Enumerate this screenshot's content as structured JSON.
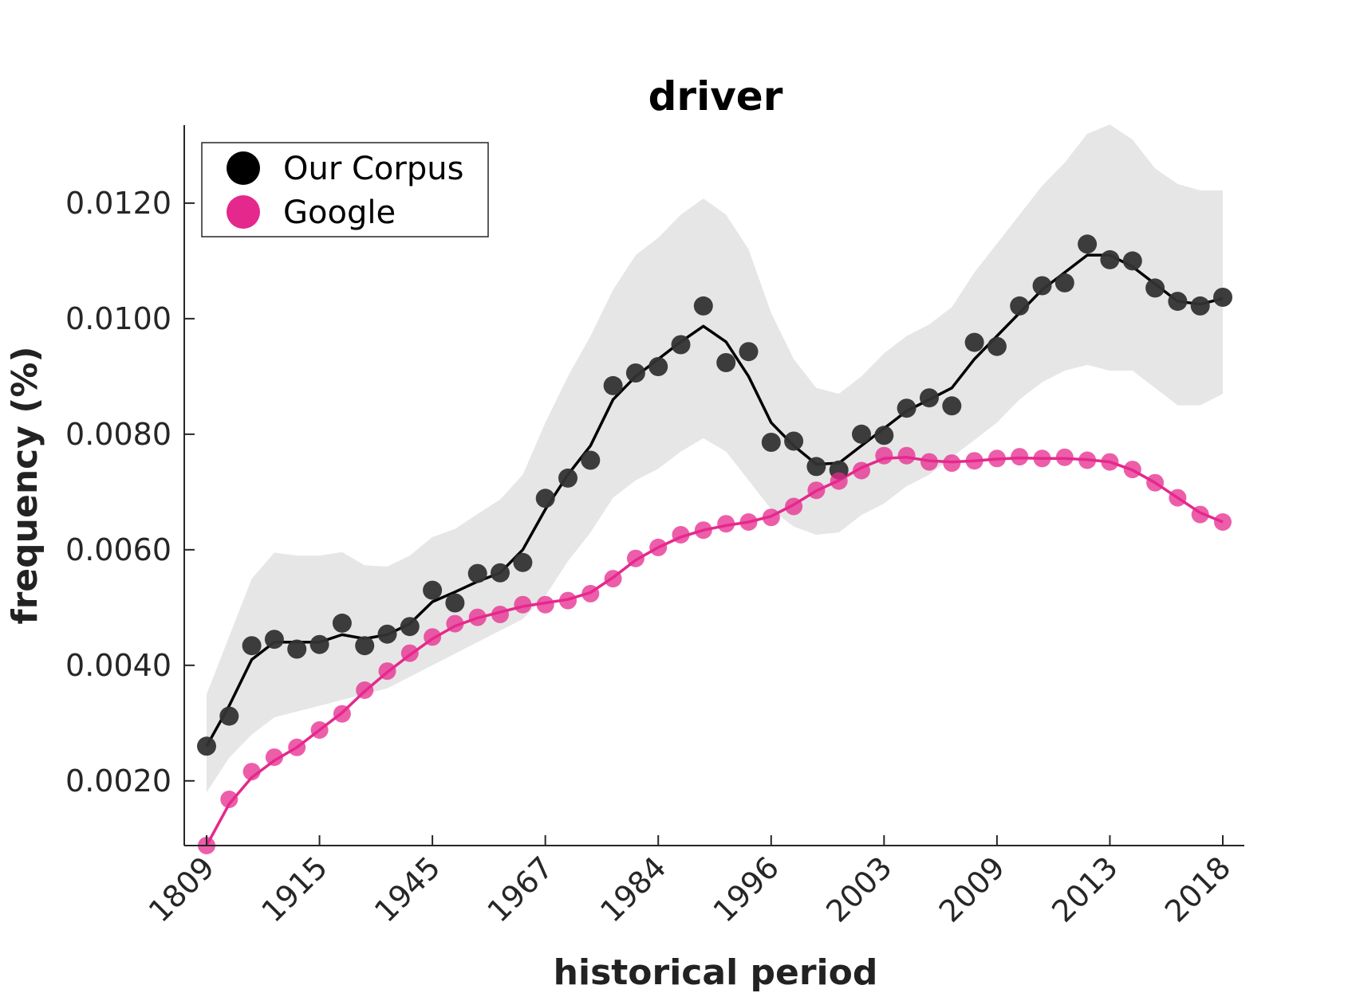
{
  "chart_data": {
    "type": "line",
    "title": "driver",
    "xlabel": "historical period",
    "ylabel": "frequency (%)",
    "x_tick_labels": [
      "1809",
      "1915",
      "1945",
      "1967",
      "1984",
      "1996",
      "2003",
      "2009",
      "2013",
      "2018"
    ],
    "y_tick_labels": [
      "0.0020",
      "0.0040",
      "0.0060",
      "0.0080",
      "0.0100",
      "0.0120"
    ],
    "y_ticks": [
      0.002,
      0.004,
      0.006,
      0.008,
      0.01,
      0.012
    ],
    "ylim": [
      0.00088,
      0.01335
    ],
    "grid": false,
    "legend_position": "top-left",
    "colors": {
      "corpus": "#333333",
      "google": "#e5288c",
      "band": "#e6e6e6"
    },
    "series": [
      {
        "name": "Our Corpus",
        "color": "#000000",
        "points": [
          0.0026,
          0.00312,
          0.00434,
          0.00445,
          0.00428,
          0.00436,
          0.00473,
          0.00434,
          0.00454,
          0.00467,
          0.0053,
          0.00508,
          0.00559,
          0.0056,
          0.00578,
          0.00689,
          0.00724,
          0.00755,
          0.00884,
          0.00906,
          0.00917,
          0.00955,
          0.01022,
          0.00924,
          0.00943,
          0.00786,
          0.00788,
          0.00744,
          0.00738,
          0.008,
          0.00798,
          0.00845,
          0.00863,
          0.00849,
          0.00959,
          0.00952,
          0.01022,
          0.01057,
          0.01062,
          0.01129,
          0.01102,
          0.011,
          0.01053,
          0.0103,
          0.01022,
          0.01037
        ],
        "trend": [
          0.0026,
          0.0033,
          0.0041,
          0.0044,
          0.0044,
          0.0044,
          0.00453,
          0.00446,
          0.00453,
          0.00472,
          0.0051,
          0.00527,
          0.00545,
          0.0056,
          0.006,
          0.0067,
          0.0073,
          0.0078,
          0.0086,
          0.009,
          0.0093,
          0.0096,
          0.00987,
          0.0096,
          0.009,
          0.0082,
          0.0078,
          0.00748,
          0.0075,
          0.0078,
          0.0081,
          0.0084,
          0.0086,
          0.0088,
          0.0093,
          0.0097,
          0.0101,
          0.0105,
          0.0108,
          0.0111,
          0.0111,
          0.0109,
          0.0106,
          0.0103,
          0.01025,
          0.01035
        ],
        "band_upper": [
          0.0035,
          0.0045,
          0.0055,
          0.00595,
          0.0059,
          0.0059,
          0.00596,
          0.00573,
          0.00571,
          0.0059,
          0.00622,
          0.00636,
          0.00662,
          0.00687,
          0.0073,
          0.0082,
          0.009,
          0.0097,
          0.0105,
          0.0111,
          0.0114,
          0.0118,
          0.01208,
          0.0118,
          0.0112,
          0.0101,
          0.0093,
          0.0088,
          0.0087,
          0.009,
          0.0094,
          0.0097,
          0.0099,
          0.0102,
          0.0108,
          0.0113,
          0.0118,
          0.0123,
          0.0127,
          0.0132,
          0.01336,
          0.0131,
          0.0126,
          0.01233,
          0.01222,
          0.01222
        ],
        "band_lower": [
          0.0018,
          0.0024,
          0.0028,
          0.0031,
          0.0032,
          0.0033,
          0.0034,
          0.0035,
          0.0036,
          0.0038,
          0.004,
          0.0042,
          0.0044,
          0.0046,
          0.0048,
          0.0052,
          0.0058,
          0.0063,
          0.0069,
          0.0072,
          0.0074,
          0.0077,
          0.00793,
          0.0077,
          0.0072,
          0.0067,
          0.0064,
          0.00626,
          0.0063,
          0.0066,
          0.0068,
          0.0071,
          0.0073,
          0.0076,
          0.0079,
          0.0082,
          0.0086,
          0.0089,
          0.0091,
          0.0092,
          0.0091,
          0.0091,
          0.0088,
          0.0085,
          0.0085,
          0.0087
        ]
      },
      {
        "name": "Google",
        "color": "#e5288c",
        "points": [
          0.00088,
          0.00168,
          0.00216,
          0.00241,
          0.00258,
          0.00288,
          0.00316,
          0.00357,
          0.0039,
          0.00421,
          0.00449,
          0.00472,
          0.00483,
          0.00488,
          0.00505,
          0.00505,
          0.00512,
          0.00524,
          0.0055,
          0.00585,
          0.00604,
          0.00626,
          0.00634,
          0.00645,
          0.00648,
          0.00656,
          0.00675,
          0.00703,
          0.00719,
          0.00737,
          0.00763,
          0.00763,
          0.00752,
          0.0075,
          0.00754,
          0.00758,
          0.00761,
          0.00758,
          0.0076,
          0.00755,
          0.00752,
          0.00739,
          0.00716,
          0.0069,
          0.00661,
          0.00648
        ],
        "trend": [
          0.00088,
          0.0016,
          0.00206,
          0.00235,
          0.00258,
          0.00288,
          0.00318,
          0.00355,
          0.00388,
          0.00418,
          0.00446,
          0.00468,
          0.00482,
          0.00492,
          0.00502,
          0.00508,
          0.00514,
          0.00526,
          0.00552,
          0.00582,
          0.00604,
          0.00622,
          0.00634,
          0.00642,
          0.00648,
          0.00658,
          0.00678,
          0.00702,
          0.0072,
          0.00742,
          0.00758,
          0.0076,
          0.00754,
          0.00752,
          0.00754,
          0.00757,
          0.00759,
          0.00758,
          0.00758,
          0.00756,
          0.00752,
          0.00738,
          0.00716,
          0.0069,
          0.00664,
          0.00648
        ]
      }
    ]
  }
}
